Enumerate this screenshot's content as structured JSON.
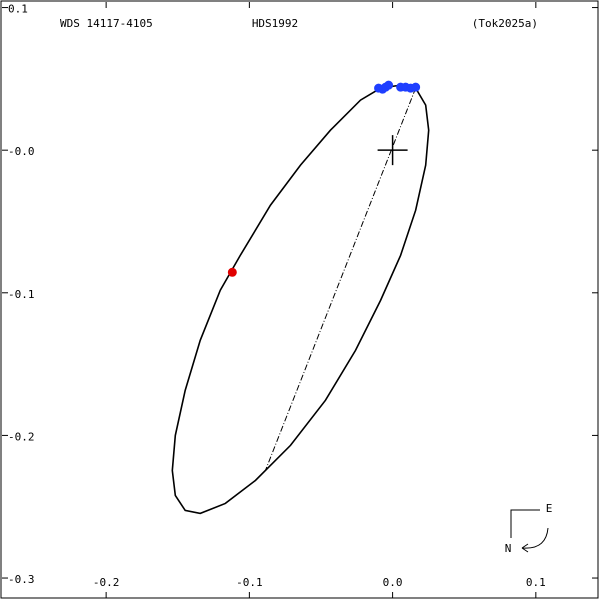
{
  "chart_data": {
    "type": "orbit",
    "title": "WDS 14117-4105",
    "subtitle": "HDS1992",
    "reference": "(Tok2025a)",
    "compass": {
      "east": "E",
      "north": "N"
    },
    "xlim": [
      -0.2741,
      0.1448
    ],
    "ylim": [
      -0.3154,
      0.1053
    ],
    "xticks": [
      -0.2,
      -0.1,
      {
        "value": 0,
        "label": "0.0"
      },
      0.1
    ],
    "yticks": [
      0.1,
      {
        "value": 0,
        "label": "-0.0"
      },
      -0.1,
      -0.2,
      -0.3
    ],
    "primary": {
      "x": 0,
      "y": 0
    },
    "orbit": {
      "x": [
        0.0056,
        0.0161,
        0.0231,
        0.0252,
        0.0231,
        0.0161,
        0.0056,
        -0.0084,
        -0.0259,
        -0.0469,
        -0.0713,
        -0.0958,
        -0.1168,
        -0.1343,
        -0.1448,
        -0.1517,
        -0.1538,
        -0.1517,
        -0.1448,
        -0.1343,
        -0.1203,
        -0.1063,
        -0.0853,
        -0.0643,
        -0.0434,
        -0.0224,
        -0.0084,
        0.0056
      ],
      "y": [
        0.0456,
        0.0435,
        0.0316,
        0.014,
        -0.0105,
        -0.0421,
        -0.0737,
        -0.1053,
        -0.1404,
        -0.1754,
        -0.207,
        -0.2316,
        -0.2477,
        -0.2547,
        -0.2526,
        -0.2421,
        -0.2246,
        -0.2,
        -0.1684,
        -0.1333,
        -0.0982,
        -0.0737,
        -0.0386,
        -0.0105,
        0.014,
        0.0351,
        0.0435,
        0.0456
      ]
    },
    "line_of_apsides": {
      "x": [
        0.0161,
        -0.0888
      ],
      "y": [
        0.0435,
        -0.2246
      ]
    },
    "observations": [
      {
        "color": "#1f3fff",
        "x": [
          -0.0098,
          -0.007,
          -0.0049,
          -0.0028,
          0.0056,
          0.0091,
          0.0126,
          0.0161
        ],
        "y": [
          0.0435,
          0.0428,
          0.0442,
          0.0456,
          0.0442,
          0.0442,
          0.0435,
          0.0442
        ]
      },
      {
        "color": "#e00000",
        "x": [
          -0.1119
        ],
        "y": [
          -0.0856
        ]
      }
    ]
  }
}
